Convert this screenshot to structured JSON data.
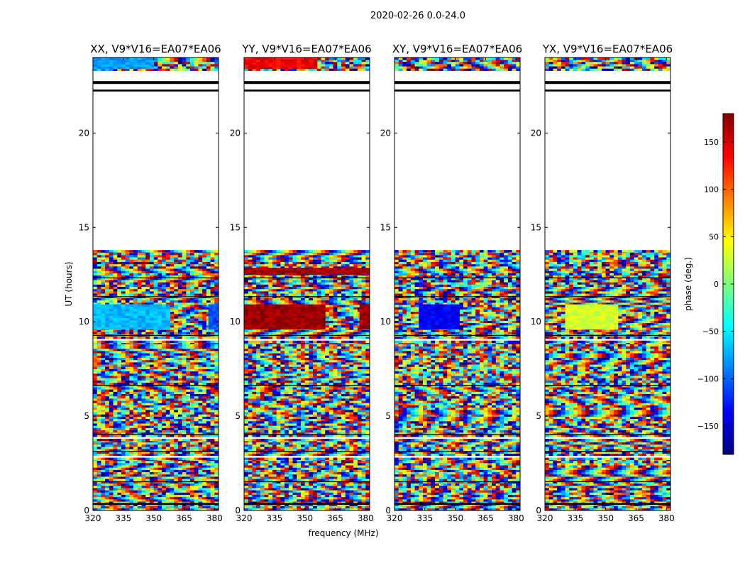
{
  "figure": {
    "suptitle": "2020-02-26 0.0-24.0",
    "xlabel": "frequency (MHz)",
    "ylabel": "UT (hours)",
    "colorbar_label": "phase (deg.)"
  },
  "chart_data": [
    {
      "type": "heatmap",
      "title": "XX, V9*V16=EA07*EA06",
      "xlabel": "",
      "ylabel": "UT (hours)",
      "xlim": [
        320,
        382
      ],
      "ylim": [
        0,
        24
      ],
      "xticks": [
        320,
        335,
        350,
        365,
        380
      ],
      "yticks": [
        0,
        5,
        10,
        15,
        20
      ],
      "value": "phase (deg.)",
      "vlim": [
        -180,
        180
      ],
      "coherent_blocks": [
        {
          "t": [
            9.6,
            10.8
          ],
          "freq": [
            320,
            357
          ],
          "phase": -70,
          "note": "phase-coherent band"
        },
        {
          "t": [
            9.6,
            10.8
          ],
          "freq": [
            377,
            382
          ],
          "phase": -105
        },
        {
          "t": [
            23.4,
            24.0
          ],
          "freq": [
            320,
            350
          ],
          "phase": -80
        }
      ]
    },
    {
      "type": "heatmap",
      "title": "YY, V9*V16=EA07*EA06",
      "xlabel": "",
      "ylabel": "",
      "xlim": [
        320,
        382
      ],
      "ylim": [
        0,
        24
      ],
      "xticks": [
        320,
        335,
        350,
        365,
        380
      ],
      "yticks": [
        0,
        5,
        10,
        15,
        20
      ],
      "value": "phase (deg.)",
      "vlim": [
        -180,
        180
      ],
      "coherent_blocks": [
        {
          "t": [
            9.6,
            10.8
          ],
          "freq": [
            320,
            360
          ],
          "phase": 170
        },
        {
          "t": [
            9.6,
            10.8
          ],
          "freq": [
            377,
            382
          ],
          "phase": 170
        },
        {
          "t": [
            12.5,
            12.8
          ],
          "freq": [
            320,
            382
          ],
          "phase": 165
        },
        {
          "t": [
            23.4,
            24.0
          ],
          "freq": [
            320,
            355
          ],
          "phase": 140
        }
      ]
    },
    {
      "type": "heatmap",
      "title": "XY, V9*V16=EA07*EA06",
      "xlabel": "",
      "ylabel": "",
      "xlim": [
        320,
        382
      ],
      "ylim": [
        0,
        24
      ],
      "xticks": [
        320,
        335,
        350,
        365,
        380
      ],
      "yticks": [
        0,
        5,
        10,
        15,
        20
      ],
      "value": "phase (deg.)",
      "vlim": [
        -180,
        180
      ],
      "coherent_blocks": [
        {
          "t": [
            9.6,
            10.8
          ],
          "freq": [
            332,
            352
          ],
          "phase": -140
        }
      ]
    },
    {
      "type": "heatmap",
      "title": "YX, V9*V16=EA07*EA06",
      "xlabel": "",
      "ylabel": "",
      "xlim": [
        320,
        382
      ],
      "ylim": [
        0,
        24
      ],
      "xticks": [
        320,
        335,
        350,
        365,
        380
      ],
      "yticks": [
        0,
        5,
        10,
        15,
        20
      ],
      "value": "phase (deg.)",
      "vlim": [
        -180,
        180
      ],
      "coherent_blocks": [
        {
          "t": [
            9.6,
            10.8
          ],
          "freq": [
            330,
            355
          ],
          "phase": 30
        }
      ]
    }
  ],
  "colorbar": {
    "ticks": [
      150,
      100,
      50,
      0,
      -50,
      -100,
      -150
    ],
    "tick_labels": [
      "150",
      "100",
      "50",
      "0",
      "−50",
      "−100",
      "−150"
    ],
    "range": [
      -180,
      180
    ],
    "colormap": "jet",
    "stops": [
      "#000080",
      "#0000ff",
      "#00ffff",
      "#7fff7f",
      "#ffff00",
      "#ff0000",
      "#800000"
    ]
  },
  "data_coverage": {
    "observed_intervals_hours": [
      [
        0.0,
        2.8
      ],
      [
        2.9,
        3.8
      ],
      [
        3.9,
        9.0
      ],
      [
        9.1,
        13.8
      ],
      [
        23.3,
        24.0
      ]
    ],
    "flagged_bands_hours": [
      [
        22.6,
        22.75
      ],
      [
        22.2,
        22.3
      ]
    ]
  }
}
